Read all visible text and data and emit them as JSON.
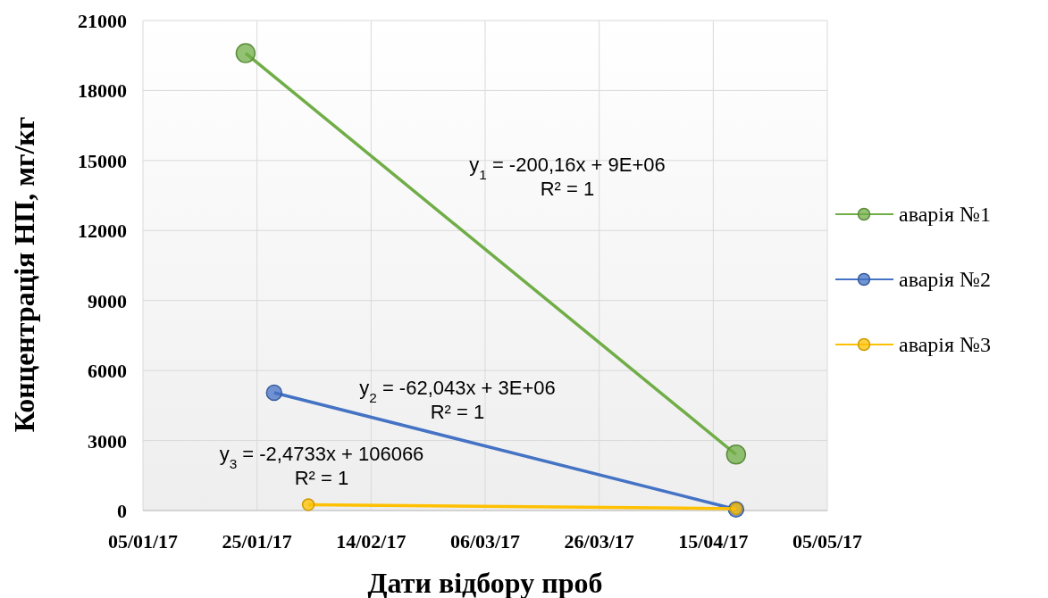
{
  "chart_data": {
    "type": "line",
    "xlabel": "Дати відбору проб",
    "ylabel": "Концентрація НП, мг/кг",
    "xlim": [
      "2017-01-05",
      "2017-05-05"
    ],
    "xticks": [
      {
        "value": "2017-01-05",
        "label": "05/01/17"
      },
      {
        "value": "2017-01-25",
        "label": "25/01/17"
      },
      {
        "value": "2017-02-14",
        "label": "14/02/17"
      },
      {
        "value": "2017-03-06",
        "label": "06/03/17"
      },
      {
        "value": "2017-03-26",
        "label": "26/03/17"
      },
      {
        "value": "2017-04-15",
        "label": "15/04/17"
      },
      {
        "value": "2017-05-05",
        "label": "05/05/17"
      }
    ],
    "ylim": [
      0,
      21000
    ],
    "yticks": [
      0,
      3000,
      6000,
      9000,
      12000,
      15000,
      18000,
      21000
    ],
    "grid": true,
    "legend": "right",
    "marker": "circle",
    "series": [
      {
        "name": "аварія №1",
        "color": "#70ad47",
        "x": [
          "2017-01-23",
          "2017-04-19"
        ],
        "values": [
          19600,
          2400
        ]
      },
      {
        "name": "аварія №2",
        "color": "#4472c4",
        "x": [
          "2017-01-28",
          "2017-04-19"
        ],
        "values": [
          5050,
          50
        ]
      },
      {
        "name": "аварія №3",
        "color": "#ffc000",
        "x": [
          "2017-02-03",
          "2017-04-19"
        ],
        "values": [
          250,
          80
        ]
      }
    ],
    "annotations": [
      "y$_{1}$ = -200,16x + 9E+06\nR² = 1",
      "y$_{2}$ = -62,043x + 3E+06\nR² = 1",
      "y$_{3}$ = -2,4733x + 106066\nR² = 1"
    ]
  }
}
